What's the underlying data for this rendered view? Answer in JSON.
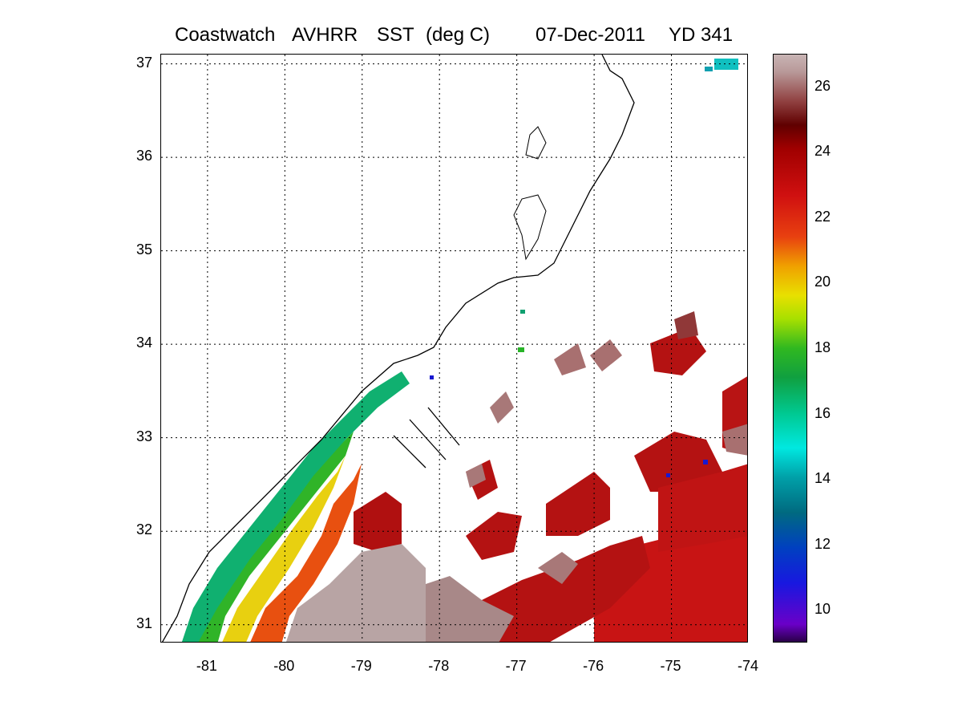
{
  "title": {
    "product": "Coastwatch",
    "sensor": "AVHRR",
    "variable": "SST",
    "units": "(deg C)",
    "date": "07-Dec-2011",
    "yearday": "YD 341"
  },
  "map": {
    "lon_range": [
      -81.6,
      -74.0
    ],
    "lat_range": [
      30.8,
      37.1
    ],
    "lon_ticks": [
      -81,
      -80,
      -79,
      -78,
      -77,
      -76,
      -75,
      -74
    ],
    "lat_ticks": [
      31,
      32,
      33,
      34,
      35,
      36,
      37
    ],
    "lon_tick_labels": [
      "-81",
      "-80",
      "-79",
      "-78",
      "-77",
      "-76",
      "-75",
      "-74"
    ],
    "lat_tick_labels": [
      "31",
      "32",
      "33",
      "34",
      "35",
      "36",
      "37"
    ],
    "grid": "dotted"
  },
  "colorbar": {
    "min": 9.0,
    "max": 27.0,
    "ticks": [
      10,
      12,
      14,
      16,
      18,
      20,
      22,
      24,
      26
    ],
    "tick_labels": [
      "10",
      "12",
      "14",
      "16",
      "18",
      "20",
      "22",
      "24",
      "26"
    ]
  },
  "colors": {
    "warm_dark_red": "#b01010",
    "red": "#c81414",
    "mauve": "#a87070",
    "pale_mauve": "#b8a0a0",
    "orange": "#e85010",
    "yellow": "#e0e010",
    "green": "#28b428",
    "teal_green": "#10b070",
    "cyan": "#10c0c0",
    "coast": "#000000"
  }
}
